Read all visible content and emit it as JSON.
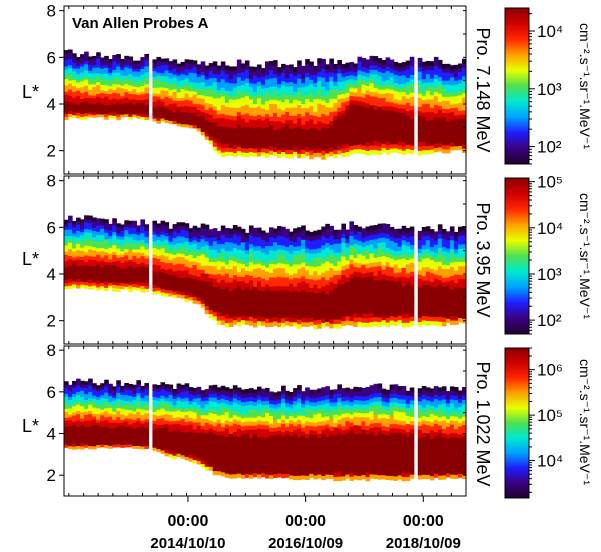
{
  "chart_data": [
    {
      "type": "heatmap",
      "title": "Van Allen Probes A",
      "ylabel": "L*",
      "channel_label": "Pro. 7.148 MeV",
      "colorbar_label": "cm⁻².s⁻¹.sr⁻¹.MeV⁻¹",
      "colorbar_scale": "log",
      "colorbar_ticks": [
        "10⁴",
        "10³",
        "10²"
      ],
      "colorbar_tick_values": [
        10000,
        1000,
        100
      ],
      "colorbar_range": [
        50,
        25000
      ],
      "ylim": [
        1,
        8.2
      ],
      "yticks": [
        2,
        4,
        6,
        8
      ],
      "xlim": [
        "2012-09-01",
        "2019-07-01"
      ],
      "band": [
        {
          "x": "2012-09-01",
          "lower": 3.4,
          "core_low": 3.7,
          "core_high": 4.0,
          "upper": 6.2
        },
        {
          "x": "2014-01-01",
          "lower": 3.4,
          "core_low": 3.6,
          "core_high": 3.9,
          "upper": 6.0
        },
        {
          "x": "2014-12-01",
          "lower": 2.9,
          "core_low": 3.1,
          "core_high": 3.5,
          "upper": 5.8
        },
        {
          "x": "2015-05-01",
          "lower": 1.8,
          "core_low": 2.3,
          "core_high": 2.9,
          "upper": 5.8
        },
        {
          "x": "2016-01-01",
          "lower": 1.8,
          "core_low": 2.2,
          "core_high": 2.9,
          "upper": 5.7
        },
        {
          "x": "2017-03-01",
          "lower": 1.7,
          "core_low": 2.1,
          "core_high": 2.8,
          "upper": 5.8
        },
        {
          "x": "2017-08-01",
          "lower": 1.9,
          "core_low": 2.4,
          "core_high": 3.9,
          "upper": 5.9
        },
        {
          "x": "2018-10-01",
          "lower": 1.9,
          "core_low": 2.4,
          "core_high": 3.3,
          "upper": 5.9
        },
        {
          "x": "2019-07-01",
          "lower": 2.0,
          "core_low": 2.3,
          "core_high": 3.2,
          "upper": 5.8
        }
      ]
    },
    {
      "type": "heatmap",
      "ylabel": "L*",
      "channel_label": "Pro. 3.95 MeV",
      "colorbar_label": "cm⁻².s⁻¹.sr⁻¹.MeV⁻¹",
      "colorbar_scale": "log",
      "colorbar_ticks": [
        "10⁵",
        "10⁴",
        "10³",
        "10²"
      ],
      "colorbar_tick_values": [
        100000,
        10000,
        1000,
        100
      ],
      "colorbar_range": [
        50,
        120000
      ],
      "ylim": [
        1,
        8.2
      ],
      "yticks": [
        2,
        4,
        6,
        8
      ],
      "xlim": [
        "2012-09-01",
        "2019-07-01"
      ],
      "band": [
        {
          "x": "2012-09-01",
          "lower": 3.4,
          "core_low": 3.8,
          "core_high": 4.3,
          "upper": 6.4
        },
        {
          "x": "2014-01-01",
          "lower": 3.3,
          "core_low": 3.7,
          "core_high": 4.2,
          "upper": 6.2
        },
        {
          "x": "2014-12-01",
          "lower": 2.8,
          "core_low": 3.1,
          "core_high": 3.7,
          "upper": 6.0
        },
        {
          "x": "2015-05-01",
          "lower": 1.8,
          "core_low": 2.3,
          "core_high": 3.3,
          "upper": 6.0
        },
        {
          "x": "2016-01-01",
          "lower": 1.8,
          "core_low": 2.2,
          "core_high": 3.2,
          "upper": 5.9
        },
        {
          "x": "2017-03-01",
          "lower": 1.7,
          "core_low": 2.1,
          "core_high": 3.1,
          "upper": 6.0
        },
        {
          "x": "2017-08-01",
          "lower": 1.8,
          "core_low": 2.3,
          "core_high": 3.8,
          "upper": 6.1
        },
        {
          "x": "2018-10-01",
          "lower": 1.8,
          "core_low": 2.3,
          "core_high": 3.4,
          "upper": 6.0
        },
        {
          "x": "2019-07-01",
          "lower": 1.9,
          "core_low": 2.2,
          "core_high": 3.3,
          "upper": 5.9
        }
      ]
    },
    {
      "type": "heatmap",
      "ylabel": "L*",
      "channel_label": "Pro. 1.022 MeV",
      "colorbar_label": "cm⁻².s⁻¹.sr⁻¹.MeV⁻¹",
      "colorbar_scale": "log",
      "colorbar_ticks": [
        "10⁶",
        "10⁵",
        "10⁴"
      ],
      "colorbar_tick_values": [
        1000000,
        100000,
        10000
      ],
      "colorbar_range": [
        1500,
        3000000
      ],
      "ylim": [
        1,
        8.2
      ],
      "yticks": [
        2,
        4,
        6,
        8
      ],
      "xlim": [
        "2012-09-01",
        "2019-07-01"
      ],
      "xticks": [
        {
          "x": "2014-10-10",
          "time": "00:00",
          "date": "2014/10/10"
        },
        {
          "x": "2016-10-09",
          "time": "00:00",
          "date": "2016/10/09"
        },
        {
          "x": "2018-10-09",
          "time": "00:00",
          "date": "2018/10/09"
        }
      ],
      "band": [
        {
          "x": "2012-09-01",
          "lower": 3.3,
          "core_low": 3.5,
          "core_high": 4.3,
          "upper": 6.5
        },
        {
          "x": "2014-01-01",
          "lower": 3.3,
          "core_low": 3.5,
          "core_high": 4.2,
          "upper": 6.4
        },
        {
          "x": "2014-12-01",
          "lower": 2.6,
          "core_low": 2.9,
          "core_high": 4.0,
          "upper": 6.2
        },
        {
          "x": "2015-05-01",
          "lower": 1.9,
          "core_low": 2.2,
          "core_high": 3.8,
          "upper": 6.2
        },
        {
          "x": "2016-01-01",
          "lower": 1.9,
          "core_low": 2.1,
          "core_high": 3.8,
          "upper": 6.1
        },
        {
          "x": "2017-03-01",
          "lower": 1.8,
          "core_low": 2.1,
          "core_high": 3.8,
          "upper": 6.2
        },
        {
          "x": "2017-08-01",
          "lower": 1.8,
          "core_low": 2.1,
          "core_high": 4.0,
          "upper": 6.3
        },
        {
          "x": "2018-10-01",
          "lower": 1.8,
          "core_low": 2.1,
          "core_high": 3.8,
          "upper": 6.2
        },
        {
          "x": "2019-07-01",
          "lower": 1.9,
          "core_low": 2.1,
          "core_high": 3.7,
          "upper": 6.1
        }
      ]
    }
  ],
  "gaps": [
    {
      "start": "2014-02-10",
      "end": "2014-03-10"
    },
    {
      "start": "2018-08-05",
      "end": "2018-09-05"
    }
  ],
  "colormap": [
    "#20002f",
    "#3a0080",
    "#1e1eff",
    "#00a0ff",
    "#00e8d0",
    "#50e050",
    "#e8ff00",
    "#ffa000",
    "#ff2800",
    "#d00000",
    "#8a0000"
  ]
}
